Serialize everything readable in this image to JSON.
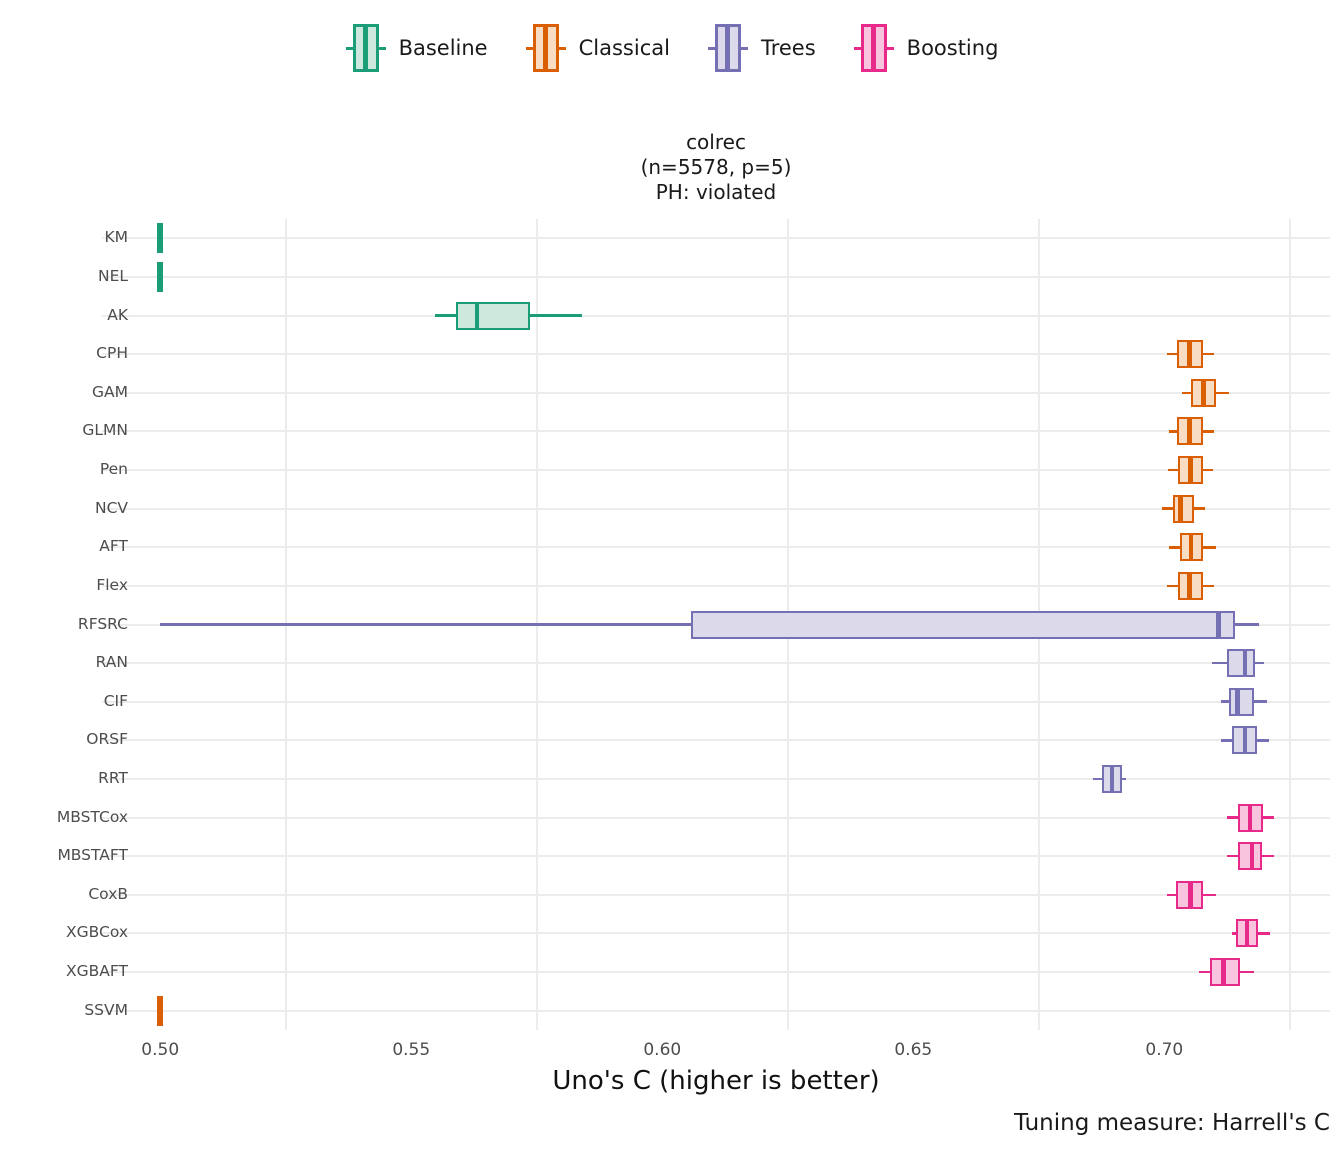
{
  "title": {
    "line1": "colrec",
    "line2": "(n=5578, p=5)",
    "line3": "PH: violated"
  },
  "chart_data": {
    "type": "boxplot",
    "orientation": "horizontal",
    "title": "colrec\n(n=5578, p=5)\nPH: violated",
    "xlabel": "Uno's C (higher is better)",
    "ylabel": "",
    "caption": "Tuning measure: Harrell's C",
    "legend_position": "top-center",
    "x_axis": {
      "range": [
        0.4884,
        0.733
      ],
      "ticks": [
        0.5,
        0.55,
        0.6,
        0.65,
        0.7
      ],
      "tick_labels": [
        "0.50",
        "0.55",
        "0.60",
        "0.65",
        "0.70"
      ],
      "minor_gridlines": [
        0.525,
        0.575,
        0.625,
        0.675,
        0.725
      ],
      "major_gridlines_visible": false
    },
    "groups": [
      {
        "name": "Baseline",
        "stroke": "#1b9e77",
        "fill": "#cfe8dd"
      },
      {
        "name": "Classical",
        "stroke": "#d95f02",
        "fill": "#f8dcc3"
      },
      {
        "name": "Trees",
        "stroke": "#7570b3",
        "fill": "#dbd9ea"
      },
      {
        "name": "Boosting",
        "stroke": "#e7298a",
        "fill": "#f8c4de"
      }
    ],
    "models": [
      {
        "name": "KM",
        "group": "Baseline",
        "degenerate": true,
        "whisker_low": 0.5,
        "q1": 0.5,
        "median": 0.5,
        "q3": 0.5,
        "whisker_high": 0.5
      },
      {
        "name": "NEL",
        "group": "Baseline",
        "degenerate": true,
        "whisker_low": 0.5,
        "q1": 0.5,
        "median": 0.5,
        "q3": 0.5,
        "whisker_high": 0.5
      },
      {
        "name": "AK",
        "group": "Baseline",
        "degenerate": false,
        "whisker_low": 0.5548,
        "q1": 0.559,
        "median": 0.5631,
        "q3": 0.5737,
        "whisker_high": 0.5841
      },
      {
        "name": "CPH",
        "group": "Classical",
        "degenerate": false,
        "whisker_low": 0.7006,
        "q1": 0.7026,
        "median": 0.705,
        "q3": 0.7078,
        "whisker_high": 0.7098
      },
      {
        "name": "GAM",
        "group": "Classical",
        "degenerate": false,
        "whisker_low": 0.7035,
        "q1": 0.7053,
        "median": 0.7078,
        "q3": 0.7102,
        "whisker_high": 0.7128
      },
      {
        "name": "GLMN",
        "group": "Classical",
        "degenerate": false,
        "whisker_low": 0.7009,
        "q1": 0.7025,
        "median": 0.705,
        "q3": 0.7077,
        "whisker_high": 0.7098
      },
      {
        "name": "Pen",
        "group": "Classical",
        "degenerate": false,
        "whisker_low": 0.7008,
        "q1": 0.7027,
        "median": 0.7052,
        "q3": 0.7078,
        "whisker_high": 0.7097
      },
      {
        "name": "NCV",
        "group": "Classical",
        "degenerate": false,
        "whisker_low": 0.6995,
        "q1": 0.7017,
        "median": 0.7032,
        "q3": 0.706,
        "whisker_high": 0.7082
      },
      {
        "name": "AFT",
        "group": "Classical",
        "degenerate": false,
        "whisker_low": 0.7009,
        "q1": 0.7031,
        "median": 0.7053,
        "q3": 0.7078,
        "whisker_high": 0.7102
      },
      {
        "name": "Flex",
        "group": "Classical",
        "degenerate": false,
        "whisker_low": 0.7005,
        "q1": 0.7027,
        "median": 0.705,
        "q3": 0.7078,
        "whisker_high": 0.7098
      },
      {
        "name": "RFSRC",
        "group": "Trees",
        "degenerate": false,
        "whisker_low": 0.5,
        "q1": 0.6058,
        "median": 0.7108,
        "q3": 0.7141,
        "whisker_high": 0.7188
      },
      {
        "name": "RAN",
        "group": "Trees",
        "degenerate": false,
        "whisker_low": 0.7095,
        "q1": 0.7125,
        "median": 0.7161,
        "q3": 0.7181,
        "whisker_high": 0.7198
      },
      {
        "name": "CIF",
        "group": "Trees",
        "degenerate": false,
        "whisker_low": 0.7113,
        "q1": 0.7128,
        "median": 0.7146,
        "q3": 0.7178,
        "whisker_high": 0.7205
      },
      {
        "name": "ORSF",
        "group": "Trees",
        "degenerate": false,
        "whisker_low": 0.7113,
        "q1": 0.7135,
        "median": 0.7161,
        "q3": 0.7185,
        "whisker_high": 0.7208
      },
      {
        "name": "RRT",
        "group": "Trees",
        "degenerate": false,
        "whisker_low": 0.6858,
        "q1": 0.6876,
        "median": 0.6896,
        "q3": 0.6916,
        "whisker_high": 0.6924
      },
      {
        "name": "MBSTCox",
        "group": "Boosting",
        "degenerate": false,
        "whisker_low": 0.7125,
        "q1": 0.7146,
        "median": 0.7171,
        "q3": 0.7197,
        "whisker_high": 0.7218
      },
      {
        "name": "MBSTAFT",
        "group": "Boosting",
        "degenerate": false,
        "whisker_low": 0.7125,
        "q1": 0.7146,
        "median": 0.7175,
        "q3": 0.7195,
        "whisker_high": 0.7218
      },
      {
        "name": "CoxB",
        "group": "Boosting",
        "degenerate": false,
        "whisker_low": 0.7005,
        "q1": 0.7024,
        "median": 0.7052,
        "q3": 0.7078,
        "whisker_high": 0.7102
      },
      {
        "name": "XGBCox",
        "group": "Boosting",
        "degenerate": false,
        "whisker_low": 0.7134,
        "q1": 0.7143,
        "median": 0.7165,
        "q3": 0.7186,
        "whisker_high": 0.721
      },
      {
        "name": "XGBAFT",
        "group": "Boosting",
        "degenerate": false,
        "whisker_low": 0.707,
        "q1": 0.709,
        "median": 0.7118,
        "q3": 0.715,
        "whisker_high": 0.7179
      },
      {
        "name": "SSVM",
        "group": "Classical",
        "degenerate": true,
        "whisker_low": 0.5,
        "q1": 0.5,
        "median": 0.5,
        "q3": 0.5,
        "whisker_high": 0.5
      }
    ]
  }
}
